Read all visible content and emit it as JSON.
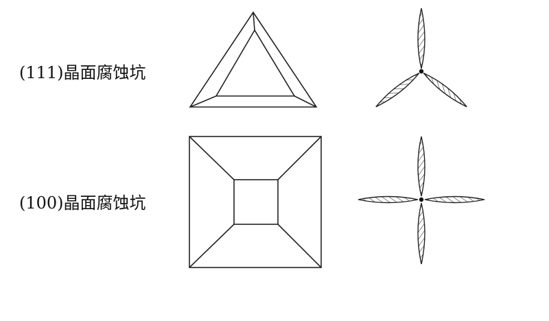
{
  "rows": [
    {
      "label": "(111)晶面腐蚀坑"
    },
    {
      "label": "(100)晶面腐蚀坑"
    }
  ],
  "colors": {
    "stroke": "#222222",
    "background": "#ffffff"
  }
}
